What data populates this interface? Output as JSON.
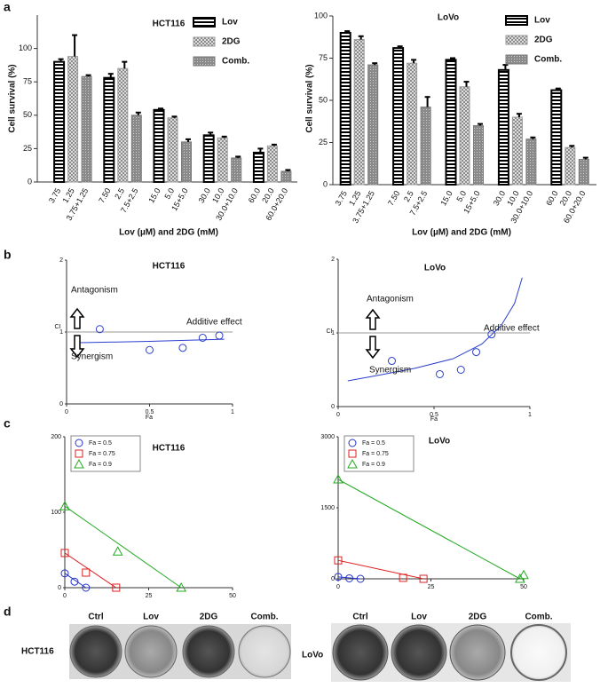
{
  "panel_labels": [
    "a",
    "b",
    "c",
    "d"
  ],
  "chart_data": [
    {
      "type": "bar",
      "title": "HCT116",
      "ylabel": "Cell survival (%)",
      "xlabel": "Lov (µM) and 2DG (mM)",
      "ylim": [
        0,
        125
      ],
      "yticks": [
        0,
        25,
        50,
        75,
        100
      ],
      "legend": "upper right",
      "series": [
        {
          "name": "Lov",
          "color": "#000000",
          "pattern": "stripes",
          "bar_labels": [
            "3.75",
            "7.50",
            "15.0",
            "30.0",
            "60.0"
          ],
          "values": [
            90,
            78,
            54,
            35,
            22
          ],
          "errors": [
            2,
            3,
            1,
            2,
            3
          ]
        },
        {
          "name": "2DG",
          "color": "#9a9a9a",
          "pattern": "checker",
          "bar_labels": [
            "1.25",
            "2.5",
            "5.0",
            "10.0",
            "20.0"
          ],
          "values": [
            94,
            85,
            48,
            33,
            27
          ],
          "errors": [
            16,
            5,
            1,
            1,
            1
          ]
        },
        {
          "name": "Comb.",
          "color": "#7a7a7a",
          "pattern": "dots",
          "bar_labels": [
            "3.75+1.25",
            "7.5+2.5",
            "15+5.0",
            "30.0+10.0",
            "60.0+20.0"
          ],
          "values": [
            79,
            50,
            30,
            18,
            8
          ],
          "errors": [
            1,
            2,
            2,
            1,
            1
          ]
        }
      ]
    },
    {
      "type": "bar",
      "title": "LoVo",
      "ylabel": "Cell survival (%)",
      "xlabel": "Lov (µM) and 2DG (mM)",
      "ylim": [
        0,
        100
      ],
      "yticks": [
        0,
        25,
        50,
        75,
        100
      ],
      "legend": "upper right",
      "series": [
        {
          "name": "Lov",
          "color": "#000000",
          "pattern": "stripes",
          "bar_labels": [
            "3.75",
            "7.50",
            "15.0",
            "30.0",
            "60.0"
          ],
          "values": [
            90,
            81,
            74,
            68,
            56
          ],
          "errors": [
            1,
            1,
            1,
            3,
            1
          ]
        },
        {
          "name": "2DG",
          "color": "#9a9a9a",
          "pattern": "checker",
          "bar_labels": [
            "1.25",
            "2.5",
            "5.0",
            "10.0",
            "20.0"
          ],
          "values": [
            86,
            72,
            58,
            40,
            22
          ],
          "errors": [
            2,
            2,
            3,
            2,
            1
          ]
        },
        {
          "name": "Comb.",
          "color": "#7a7a7a",
          "pattern": "dots",
          "bar_labels": [
            "3.75+1.25",
            "7.5+2.5",
            "15+5.0",
            "30.0+10.0",
            "60.0+20.0"
          ],
          "values": [
            71,
            46,
            35,
            27,
            15
          ],
          "errors": [
            1,
            6,
            1,
            1,
            1
          ]
        }
      ]
    },
    {
      "type": "scatter",
      "title": "HCT116",
      "ylabel": "CI",
      "xlabel": "Fa",
      "color": "#2b3fcc",
      "xlim": [
        0,
        1
      ],
      "xticks": [
        0,
        0.5,
        1
      ],
      "ylim": [
        0,
        2
      ],
      "yticks": [
        0,
        1,
        2
      ],
      "reference_y": 1,
      "x": [
        0.2,
        0.5,
        0.7,
        0.82,
        0.92
      ],
      "y": [
        1.04,
        0.75,
        0.78,
        0.92,
        0.95
      ],
      "fit_x": [
        0.05,
        0.5,
        0.95
      ],
      "fit_y": [
        0.85,
        0.87,
        0.9
      ],
      "annotations": [
        "Antagonism",
        "Synergism",
        "Additive effect"
      ]
    },
    {
      "type": "scatter",
      "title": "LoVo",
      "ylabel": "CI",
      "xlabel": "Fa",
      "color": "#2b3fcc",
      "xlim": [
        0,
        1
      ],
      "xticks": [
        0,
        0.5,
        1
      ],
      "ylim": [
        0,
        2
      ],
      "yticks": [
        0,
        1,
        2
      ],
      "reference_y": 1,
      "x": [
        0.28,
        0.53,
        0.64,
        0.72,
        0.8
      ],
      "y": [
        0.62,
        0.44,
        0.5,
        0.74,
        0.98
      ],
      "fit_x": [
        0.05,
        0.2,
        0.4,
        0.6,
        0.75,
        0.85,
        0.92,
        0.96
      ],
      "fit_y": [
        0.35,
        0.42,
        0.52,
        0.65,
        0.85,
        1.1,
        1.4,
        1.75
      ],
      "annotations": [
        "Antagonism",
        "Synergism",
        "Additive effect"
      ]
    },
    {
      "type": "isobologram",
      "title": "HCT116",
      "legend": "upper left",
      "xlim": [
        0,
        50
      ],
      "xticks": [
        0,
        25,
        50
      ],
      "ylim": [
        0,
        200
      ],
      "yticks": [
        0,
        100,
        200
      ],
      "series": [
        {
          "name": "Fa = 0.5",
          "color": "#2233cc",
          "marker": "circle",
          "x": [
            0,
            2.9,
            6.3
          ],
          "y": [
            19,
            8,
            0
          ]
        },
        {
          "name": "Fa = 0.75",
          "color": "#dd2222",
          "marker": "square",
          "x": [
            0,
            6.3,
            15.3
          ],
          "y": [
            46,
            20,
            0
          ]
        },
        {
          "name": "Fa = 0.9",
          "color": "#22aa22",
          "marker": "triangle",
          "x": [
            0,
            15.8,
            34.7
          ],
          "y": [
            108,
            48,
            0
          ]
        }
      ]
    },
    {
      "type": "isobologram",
      "title": "LoVo",
      "legend": "upper left",
      "xlim": [
        0,
        50
      ],
      "xticks": [
        0,
        25,
        50
      ],
      "ylim": [
        0,
        3000
      ],
      "yticks": [
        0,
        1500,
        3000
      ],
      "series": [
        {
          "name": "Fa = 0.5",
          "color": "#2233cc",
          "marker": "circle",
          "x": [
            0,
            3,
            6
          ],
          "y": [
            40,
            10,
            0
          ]
        },
        {
          "name": "Fa = 0.75",
          "color": "#dd2222",
          "marker": "square",
          "x": [
            0,
            17.5,
            23
          ],
          "y": [
            390,
            20,
            0
          ]
        },
        {
          "name": "Fa = 0.9",
          "color": "#22aa22",
          "marker": "triangle",
          "x": [
            0,
            50,
            49
          ],
          "y": [
            2100,
            80,
            0
          ]
        }
      ]
    }
  ],
  "plates": {
    "columns": [
      "Ctrl",
      "Lov",
      "2DG",
      "Comb."
    ],
    "rows": [
      "HCT116",
      "LoVo"
    ]
  }
}
